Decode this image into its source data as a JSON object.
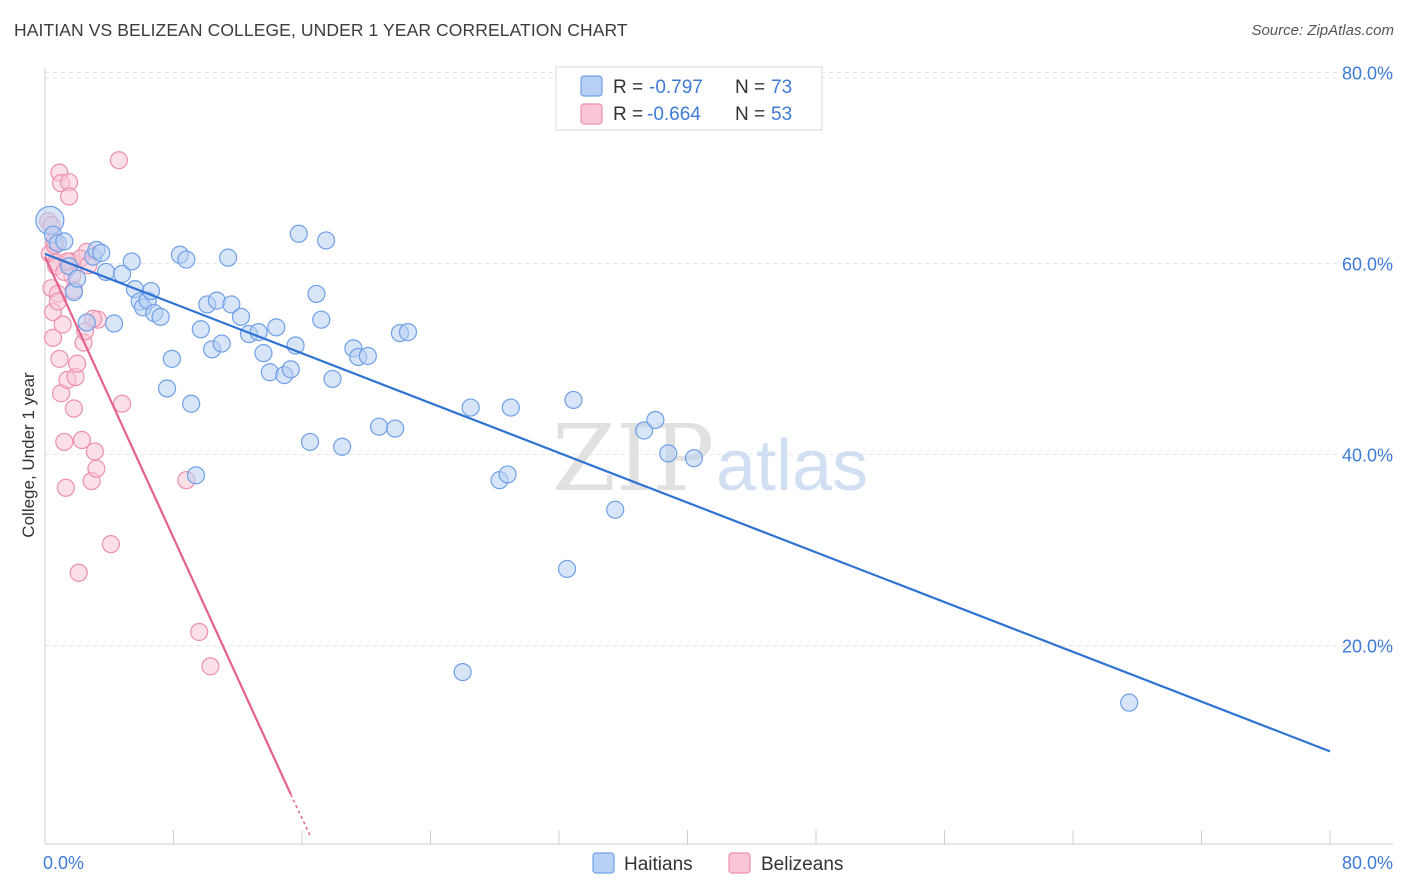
{
  "title": "HAITIAN VS BELIZEAN COLLEGE, UNDER 1 YEAR CORRELATION CHART",
  "source": "Source: ZipAtlas.com",
  "colors": {
    "haitians": "#6fa0e8",
    "haitians_fill": "#b8d0f3",
    "haitians_line": "#2f73d2",
    "belizeans": "#ee8fb0",
    "belizeans_fill": "#f8c6d6",
    "belizeans_line": "#e4608f",
    "axis_text": "#3d7bd6"
  },
  "legend": {
    "rows": [
      {
        "r_label": "R = ",
        "r_value": "-0.797",
        "n_label": "N = ",
        "n_value": "73"
      },
      {
        "r_label": "R = ",
        "r_value": "-0.664",
        "n_label": "N = ",
        "n_value": "53"
      }
    ]
  },
  "chart_data": {
    "type": "scatter",
    "title": "HAITIAN VS BELIZEAN COLLEGE, UNDER 1 YEAR CORRELATION CHART",
    "xlabel": "",
    "ylabel": "College, Under 1 year",
    "xlim": [
      0,
      80
    ],
    "ylim": [
      0,
      80
    ],
    "x_tick_labels": [
      "0.0%",
      "80.0%"
    ],
    "y_tick_labels": [
      "80.0%",
      "60.0%",
      "40.0%",
      "20.0%"
    ],
    "y_tick_values": [
      80,
      60,
      40,
      20
    ],
    "series": [
      {
        "name": "Haitians",
        "points": [
          [
            0.3,
            65.3
          ],
          [
            0.5,
            63.8
          ],
          [
            0.8,
            62.9
          ],
          [
            1.2,
            63.1
          ],
          [
            1.5,
            60.5
          ],
          [
            1.8,
            57.8
          ],
          [
            2.0,
            59.2
          ],
          [
            2.6,
            54.6
          ],
          [
            3.0,
            61.5
          ],
          [
            3.2,
            62.2
          ],
          [
            3.5,
            61.9
          ],
          [
            3.8,
            59.9
          ],
          [
            4.3,
            54.5
          ],
          [
            4.8,
            59.7
          ],
          [
            5.4,
            61.0
          ],
          [
            5.6,
            58.1
          ],
          [
            5.9,
            56.8
          ],
          [
            6.1,
            56.2
          ],
          [
            6.4,
            56.9
          ],
          [
            6.6,
            57.9
          ],
          [
            6.8,
            55.6
          ],
          [
            7.2,
            55.2
          ],
          [
            7.6,
            47.7
          ],
          [
            7.9,
            50.8
          ],
          [
            8.4,
            61.7
          ],
          [
            8.8,
            61.2
          ],
          [
            9.1,
            46.1
          ],
          [
            9.4,
            38.6
          ],
          [
            9.7,
            53.9
          ],
          [
            10.1,
            56.5
          ],
          [
            10.4,
            51.8
          ],
          [
            10.7,
            56.9
          ],
          [
            11.0,
            52.4
          ],
          [
            11.4,
            61.4
          ],
          [
            11.6,
            56.5
          ],
          [
            12.2,
            55.2
          ],
          [
            12.7,
            53.4
          ],
          [
            13.3,
            53.6
          ],
          [
            13.6,
            51.4
          ],
          [
            14.0,
            49.4
          ],
          [
            14.4,
            54.1
          ],
          [
            14.9,
            49.1
          ],
          [
            15.3,
            49.7
          ],
          [
            15.6,
            52.2
          ],
          [
            15.8,
            63.9
          ],
          [
            16.5,
            42.1
          ],
          [
            16.9,
            57.6
          ],
          [
            17.2,
            54.9
          ],
          [
            17.5,
            63.2
          ],
          [
            17.9,
            48.7
          ],
          [
            18.5,
            41.6
          ],
          [
            19.2,
            51.9
          ],
          [
            19.5,
            51.0
          ],
          [
            20.1,
            51.1
          ],
          [
            20.8,
            43.7
          ],
          [
            21.8,
            43.5
          ],
          [
            22.1,
            53.5
          ],
          [
            22.6,
            53.6
          ],
          [
            26.5,
            45.7
          ],
          [
            28.3,
            38.1
          ],
          [
            28.8,
            38.7
          ],
          [
            29.0,
            45.7
          ],
          [
            32.5,
            28.8
          ],
          [
            32.9,
            46.5
          ],
          [
            35.5,
            35.0
          ],
          [
            37.3,
            43.3
          ],
          [
            38.0,
            44.4
          ],
          [
            38.8,
            40.9
          ],
          [
            40.4,
            40.4
          ],
          [
            26.0,
            18.0
          ],
          [
            67.5,
            14.8
          ]
        ],
        "trend": {
          "x": [
            0,
            80
          ],
          "y": [
            61.8,
            9.7
          ]
        }
      },
      {
        "name": "Belizeans",
        "points": [
          [
            0.2,
            65.2
          ],
          [
            0.3,
            61.8
          ],
          [
            0.4,
            58.2
          ],
          [
            0.5,
            55.7
          ],
          [
            0.5,
            53.0
          ],
          [
            0.6,
            62.7
          ],
          [
            0.7,
            60.9
          ],
          [
            0.8,
            57.6
          ],
          [
            0.9,
            70.3
          ],
          [
            1.0,
            69.2
          ],
          [
            0.9,
            50.8
          ],
          [
            1.0,
            47.2
          ],
          [
            1.1,
            54.4
          ],
          [
            1.2,
            42.1
          ],
          [
            1.3,
            37.3
          ],
          [
            1.4,
            48.6
          ],
          [
            1.5,
            69.3
          ],
          [
            1.5,
            67.8
          ],
          [
            1.6,
            61.0
          ],
          [
            1.7,
            59.5
          ],
          [
            1.8,
            45.6
          ],
          [
            1.9,
            48.9
          ],
          [
            2.0,
            50.3
          ],
          [
            2.1,
            28.4
          ],
          [
            2.3,
            42.3
          ],
          [
            2.4,
            52.5
          ],
          [
            2.5,
            53.7
          ],
          [
            2.6,
            62.0
          ],
          [
            2.9,
            38.0
          ],
          [
            3.1,
            41.1
          ],
          [
            3.2,
            39.3
          ],
          [
            3.3,
            54.9
          ],
          [
            4.1,
            31.4
          ],
          [
            4.6,
            71.6
          ],
          [
            4.8,
            46.1
          ],
          [
            8.8,
            38.1
          ],
          [
            9.6,
            22.2
          ],
          [
            10.3,
            18.6
          ],
          [
            0.7,
            60.5
          ],
          [
            1.2,
            59.9
          ],
          [
            1.8,
            58.0
          ],
          [
            2.2,
            61.3
          ],
          [
            0.4,
            64.8
          ],
          [
            0.6,
            63.1
          ],
          [
            1.4,
            61.0
          ],
          [
            2.7,
            60.6
          ],
          [
            3.0,
            55.0
          ],
          [
            0.8,
            56.8
          ]
        ],
        "trend": {
          "x": [
            0,
            15.3
          ],
          "y": [
            61.5,
            5.2
          ],
          "dashed_ext": {
            "x": [
              15.3,
              16.5
            ],
            "y": [
              5.2,
              0.9
            ]
          }
        }
      }
    ],
    "legend": [
      "Haitians",
      "Belizeans"
    ],
    "legend_position": "bottom",
    "watermark": "ZIPatlas"
  }
}
